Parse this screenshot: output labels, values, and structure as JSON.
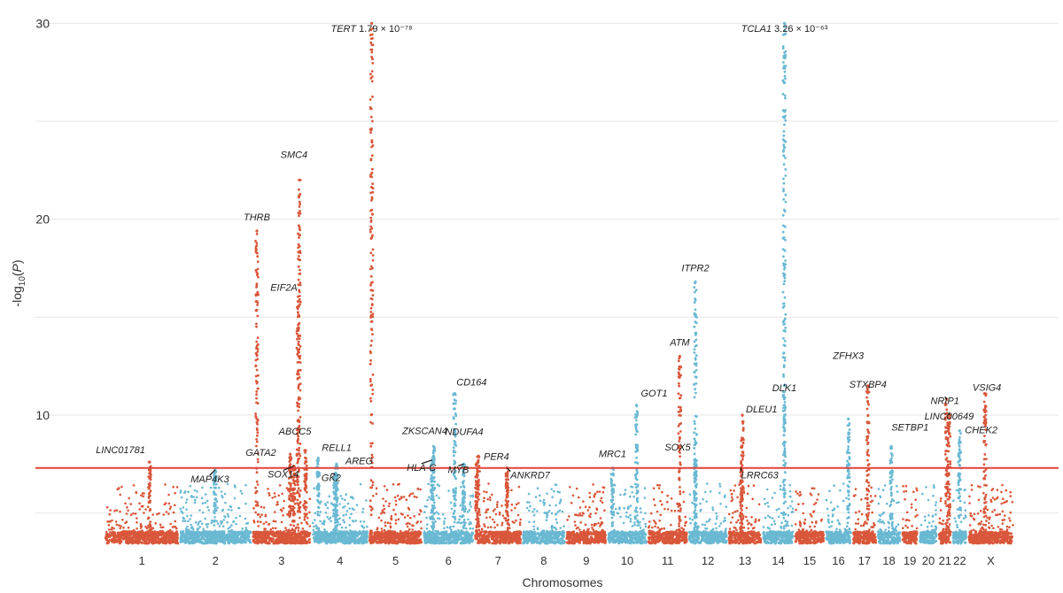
{
  "chart_data": {
    "type": "scatter",
    "subtype": "manhattan",
    "title": "",
    "xlabel": "Chromosomes",
    "ylabel": "-log10(P)",
    "ylim": [
      3.4,
      30.2
    ],
    "yticks": [
      10,
      20,
      30
    ],
    "grid": "horizontal",
    "significance_line": 7.3,
    "colors": {
      "odd": "#d9573b",
      "even": "#6ab9d3",
      "threshold": "#e0433a",
      "grid": "#e6e6e6"
    },
    "chromosomes": [
      {
        "label": "1",
        "start": 0,
        "end": 248
      },
      {
        "label": "2",
        "start": 248,
        "end": 490
      },
      {
        "label": "3",
        "start": 490,
        "end": 688
      },
      {
        "label": "4",
        "start": 688,
        "end": 878
      },
      {
        "label": "5",
        "start": 878,
        "end": 1059
      },
      {
        "label": "6",
        "start": 1059,
        "end": 1230
      },
      {
        "label": "7",
        "start": 1230,
        "end": 1389
      },
      {
        "label": "8",
        "start": 1389,
        "end": 1534
      },
      {
        "label": "9",
        "start": 1534,
        "end": 1672
      },
      {
        "label": "10",
        "start": 1672,
        "end": 1806
      },
      {
        "label": "11",
        "start": 1806,
        "end": 1941
      },
      {
        "label": "12",
        "start": 1941,
        "end": 2074
      },
      {
        "label": "13",
        "start": 2074,
        "end": 2188
      },
      {
        "label": "14",
        "start": 2188,
        "end": 2295
      },
      {
        "label": "15",
        "start": 2295,
        "end": 2397
      },
      {
        "label": "16",
        "start": 2397,
        "end": 2487
      },
      {
        "label": "17",
        "start": 2487,
        "end": 2570
      },
      {
        "label": "18",
        "start": 2570,
        "end": 2650
      },
      {
        "label": "19",
        "start": 2650,
        "end": 2709
      },
      {
        "label": "20",
        "start": 2709,
        "end": 2773
      },
      {
        "label": "21",
        "start": 2773,
        "end": 2820
      },
      {
        "label": "22",
        "start": 2820,
        "end": 2871
      },
      {
        "label": "X",
        "start": 2871,
        "end": 3027
      }
    ],
    "peaks": [
      {
        "gene": "LINC01781",
        "pos": 150,
        "p": 7.6
      },
      {
        "gene": "MAP4K3",
        "pos": 368,
        "p": 7.2
      },
      {
        "gene": "THRB",
        "pos": 507,
        "p": 19.4
      },
      {
        "gene": "GATA2",
        "pos": 618,
        "p": 8.0
      },
      {
        "gene": "SOX14",
        "pos": 630,
        "p": 7.4
      },
      {
        "gene": "SMC4",
        "pos": 648,
        "p": 22.0
      },
      {
        "gene": "EIF2A",
        "pos": 644,
        "p": 15.8
      },
      {
        "gene": "ABCC5",
        "pos": 669,
        "p": 8.2
      },
      {
        "gene": "RELL1",
        "pos": 711,
        "p": 7.8
      },
      {
        "gene": "GK2",
        "pos": 766,
        "p": 7.0
      },
      {
        "gene": "AREG",
        "pos": 772,
        "p": 7.5
      },
      {
        "gene": "TERT",
        "pos": 889,
        "p": 30,
        "label": "1.79 × 10⁻⁷⁸"
      },
      {
        "gene": "ZKSCAN4",
        "pos": 1095,
        "p": 8.4
      },
      {
        "gene": "HLA-C",
        "pos": 1090,
        "p": 7.7
      },
      {
        "gene": "CD164",
        "pos": 1165,
        "p": 11.1
      },
      {
        "gene": "MYB",
        "pos": 1195,
        "p": 7.5
      },
      {
        "gene": "NDUFA4",
        "pos": 1244,
        "p": 7.9
      },
      {
        "gene": "PER4",
        "pos": 1238,
        "p": 7.5
      },
      {
        "gene": "ANKRD7",
        "pos": 1339,
        "p": 7.3
      },
      {
        "gene": "MRC1",
        "pos": 1690,
        "p": 7.3
      },
      {
        "gene": "GOT1",
        "pos": 1770,
        "p": 10.5
      },
      {
        "gene": "SOX5",
        "pos": 1966,
        "p": 7.6
      },
      {
        "gene": "ATM",
        "pos": 1914,
        "p": 13.0
      },
      {
        "gene": "ITPR2",
        "pos": 1966,
        "p": 16.8
      },
      {
        "gene": "DLEU1",
        "pos": 2122,
        "p": 10.0
      },
      {
        "gene": "LRRC63",
        "pos": 2118,
        "p": 7.3
      },
      {
        "gene": "DLK1",
        "pos": 2262,
        "p": 11.5
      },
      {
        "gene": "TCLA1",
        "pos": 2262,
        "p": 30,
        "label": "3.26 × 10⁻⁶³"
      },
      {
        "gene": "ZFHX3",
        "pos": 2475,
        "p": 9.8
      },
      {
        "gene": "STXBP4",
        "pos": 2540,
        "p": 11.5
      },
      {
        "gene": "SETBP1",
        "pos": 2618,
        "p": 8.4
      },
      {
        "gene": "NRIP1",
        "pos": 2802,
        "p": 10.8
      },
      {
        "gene": "LINC00649",
        "pos": 2810,
        "p": 10.0
      },
      {
        "gene": "CHEK2",
        "pos": 2845,
        "p": 9.2
      },
      {
        "gene": "VSIG4",
        "pos": 2930,
        "p": 11.1
      }
    ]
  }
}
